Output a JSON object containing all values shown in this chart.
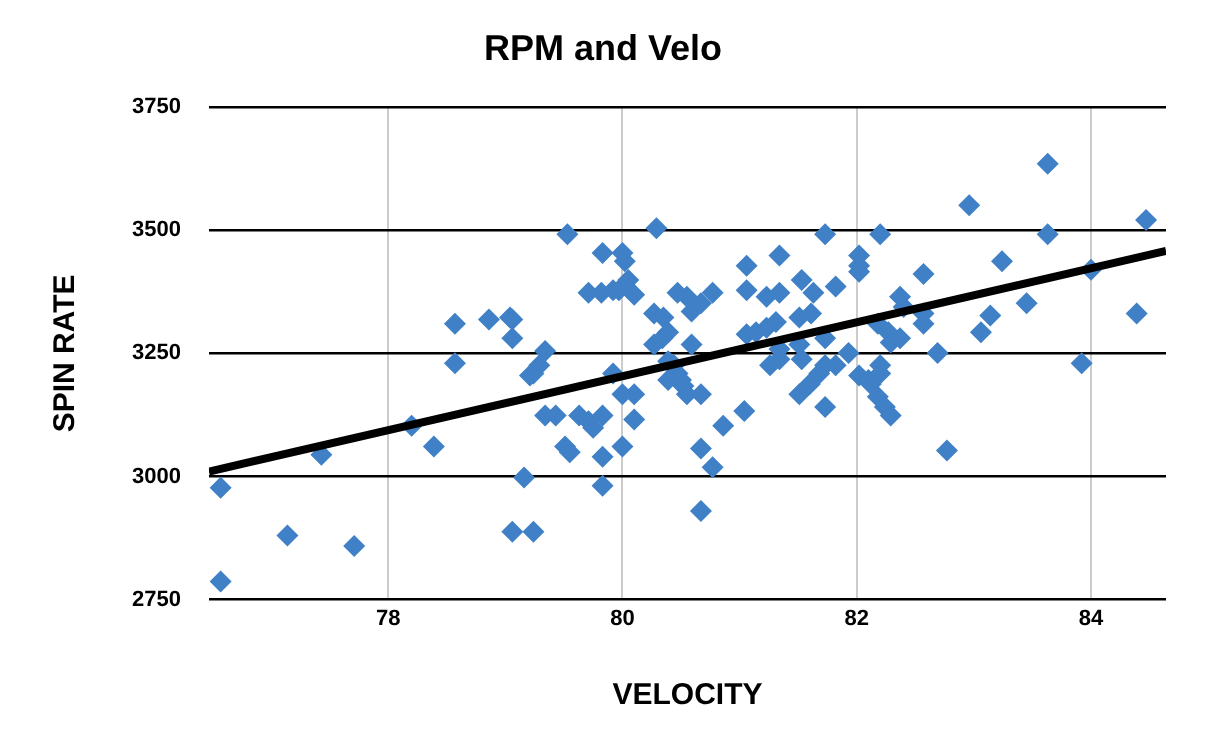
{
  "chart_data": {
    "type": "scatter",
    "title": "RPM and Velo",
    "xlabel": "VELOCITY",
    "ylabel": "SPIN RATE",
    "xlim": [
      76.47,
      84.64
    ],
    "xticks": [
      78,
      80,
      82,
      84
    ],
    "ylim": [
      2750,
      3750
    ],
    "yticks": [
      2750,
      3000,
      3250,
      3500,
      3750
    ],
    "grid": true,
    "legend": false,
    "series": [
      {
        "type": "scatter",
        "marker": "diamond",
        "color": "#3f80c6",
        "x": [
          76.57,
          76.57,
          77.14,
          77.43,
          77.71,
          78.2,
          78.39,
          78.57,
          78.57,
          78.86,
          79.06,
          79.06,
          79.16,
          79.06,
          79.24,
          79.21,
          79.04,
          79.34,
          79.29,
          79.24,
          79.34,
          79.43,
          79.53,
          79.51,
          79.55,
          79.63,
          79.71,
          79.75,
          79.83,
          79.71,
          79.82,
          79.83,
          79.83,
          79.83,
          79.92,
          79.92,
          79.97,
          80.0,
          80.02,
          80.05,
          80.1,
          80.0,
          80.1,
          80.1,
          80.0,
          80.29,
          80.27,
          80.35,
          80.39,
          80.27,
          80.34,
          80.39,
          80.44,
          80.47,
          80.39,
          80.5,
          80.52,
          80.55,
          80.67,
          80.47,
          80.55,
          80.59,
          80.67,
          80.77,
          80.59,
          80.67,
          80.77,
          80.67,
          80.86,
          81.04,
          81.06,
          81.06,
          81.06,
          81.14,
          81.23,
          81.31,
          81.23,
          81.34,
          81.34,
          81.26,
          81.34,
          81.34,
          81.53,
          81.63,
          81.51,
          81.61,
          81.51,
          81.53,
          81.51,
          81.6,
          81.68,
          81.73,
          81.73,
          81.73,
          81.82,
          81.82,
          81.73,
          81.93,
          82.02,
          82.02,
          82.02,
          82.2,
          82.02,
          82.1,
          82.12,
          82.2,
          82.2,
          82.18,
          82.24,
          82.29,
          82.18,
          82.27,
          82.29,
          82.37,
          82.37,
          82.4,
          82.57,
          82.57,
          82.57,
          82.69,
          82.77,
          82.96,
          83.06,
          83.14,
          83.24,
          83.45,
          83.63,
          83.63,
          83.92,
          84.0,
          84.39,
          84.47
        ],
        "values": [
          2977,
          2787,
          2880,
          3044,
          2859,
          3103,
          3061,
          3310,
          3230,
          3319,
          3319,
          3281,
          2998,
          2888,
          2888,
          3205,
          3323,
          3255,
          3226,
          3209,
          3124,
          3124,
          3492,
          3061,
          3049,
          3124,
          3112,
          3099,
          3124,
          3373,
          3373,
          3454,
          3040,
          2981,
          3209,
          3378,
          3378,
          3454,
          3437,
          3399,
          3369,
          3167,
          3167,
          3116,
          3061,
          3504,
          3331,
          3323,
          3293,
          3268,
          3281,
          3234,
          3226,
          3209,
          3196,
          3196,
          3184,
          3167,
          3167,
          3373,
          3365,
          3335,
          3352,
          3373,
          3268,
          3057,
          3019,
          2930,
          3103,
          3133,
          3428,
          3378,
          3289,
          3293,
          3302,
          3314,
          3365,
          3373,
          3449,
          3226,
          3238,
          3259,
          3399,
          3373,
          3323,
          3331,
          3268,
          3238,
          3167,
          3188,
          3209,
          3226,
          3141,
          3492,
          3386,
          3226,
          3281,
          3251,
          3449,
          3428,
          3416,
          3492,
          3205,
          3196,
          3188,
          3226,
          3209,
          3162,
          3141,
          3124,
          3310,
          3293,
          3272,
          3281,
          3365,
          3344,
          3411,
          3331,
          3310,
          3251,
          3053,
          3551,
          3293,
          3327,
          3437,
          3352,
          3635,
          3492,
          3230,
          3420,
          3331,
          3521
        ]
      },
      {
        "type": "line",
        "marker": "none",
        "color": "#000000",
        "x": [
          76.47,
          84.64
        ],
        "values": [
          3010,
          3458
        ]
      }
    ]
  }
}
